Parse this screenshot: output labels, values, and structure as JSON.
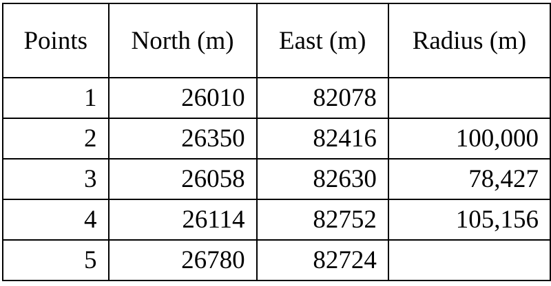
{
  "table": {
    "headers": [
      "Points",
      "North (m)",
      "East (m)",
      "Radius (m)"
    ],
    "rows": [
      [
        "1",
        "26010",
        "82078",
        ""
      ],
      [
        "2",
        "26350",
        "82416",
        "100,000"
      ],
      [
        "3",
        "26058",
        "82630",
        "78,427"
      ],
      [
        "4",
        "26114",
        "82752",
        "105,156"
      ],
      [
        "5",
        "26780",
        "82724",
        ""
      ]
    ]
  }
}
